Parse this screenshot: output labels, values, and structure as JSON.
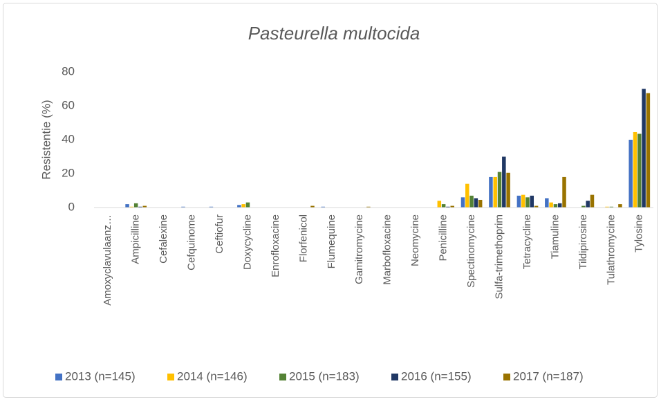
{
  "chart_data": {
    "type": "bar",
    "title": "Pasteurella multocida",
    "ylabel": "Resistentie (%)",
    "categories": [
      "Amoxyclavulaanz…",
      "Ampicilline",
      "Cefalexine",
      "Cefquinome",
      "Ceftiofur",
      "Doxycycline",
      "Enrofloxacine",
      "Florfenicol",
      "Flumequine",
      "Gamitromycine",
      "Marbofloxacine",
      "Neomycine",
      "Penicilline",
      "Spectinomycine",
      "Sulfa-trimethoprim",
      "Tetracycline",
      "Tiamuline",
      "Tildipirosine",
      "Tulathromycine",
      "Tylosine"
    ],
    "series": [
      {
        "name": "2013 (n=145)",
        "color": "#4472c4",
        "values": [
          0,
          2,
          0,
          0.5,
          0.5,
          1.5,
          0,
          0,
          0.5,
          0,
          0,
          0,
          0,
          6,
          18,
          7,
          5.5,
          0,
          0,
          40
        ]
      },
      {
        "name": "2014 (n=146)",
        "color": "#ffc000",
        "values": [
          0,
          0.5,
          0,
          0,
          0,
          2,
          0,
          0,
          0,
          0,
          0,
          0,
          4,
          14,
          18,
          7.5,
          3,
          0,
          0.5,
          44.5
        ]
      },
      {
        "name": "2015 (n=183)",
        "color": "#548235",
        "values": [
          0,
          2.5,
          0,
          0,
          0,
          3,
          0,
          0,
          0,
          0,
          0,
          0,
          2,
          7,
          21,
          6,
          2,
          1,
          0.5,
          43.5
        ]
      },
      {
        "name": "2016 (n=155)",
        "color": "#203864",
        "values": [
          0,
          0.5,
          0,
          0,
          0,
          0,
          0,
          0,
          0,
          0,
          0,
          0,
          0.5,
          5.5,
          30,
          7,
          2.5,
          4,
          0,
          70
        ]
      },
      {
        "name": "2017 (n=187)",
        "color": "#997300",
        "values": [
          0,
          1,
          0,
          0,
          0,
          0,
          0,
          1,
          0,
          0.5,
          0,
          0,
          1,
          4.5,
          20.5,
          1,
          18,
          7.5,
          2,
          67.5
        ]
      }
    ],
    "ylim": [
      0,
      80
    ],
    "yticks": [
      0,
      20,
      40,
      60,
      80
    ],
    "grid": false,
    "legend": "bottom"
  }
}
